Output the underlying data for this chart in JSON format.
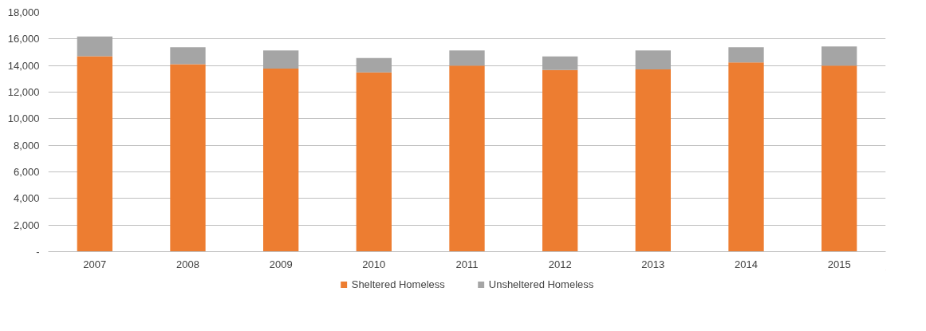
{
  "chart_data": {
    "type": "bar",
    "stacked": true,
    "categories": [
      "2007",
      "2008",
      "2009",
      "2010",
      "2011",
      "2012",
      "2013",
      "2014",
      "2015"
    ],
    "series": [
      {
        "name": "Sheltered Homeless",
        "color": "#ed7d31",
        "values": [
          14700,
          14100,
          13770,
          13490,
          14000,
          13660,
          13710,
          14230,
          14000
        ]
      },
      {
        "name": "Unsheltered Homeless",
        "color": "#a5a5a5",
        "values": [
          1490,
          1270,
          1370,
          1080,
          1140,
          1030,
          1430,
          1140,
          1430
        ]
      }
    ],
    "ylim": [
      0,
      18000
    ],
    "yticks": [
      {
        "value": 0,
        "label": "-"
      },
      {
        "value": 2000,
        "label": "2,000"
      },
      {
        "value": 4000,
        "label": "4,000"
      },
      {
        "value": 6000,
        "label": "6,000"
      },
      {
        "value": 8000,
        "label": "8,000"
      },
      {
        "value": 10000,
        "label": "10,000"
      },
      {
        "value": 12000,
        "label": "12,000"
      },
      {
        "value": 14000,
        "label": "14,000"
      },
      {
        "value": 16000,
        "label": "16,000"
      },
      {
        "value": 18000,
        "label": "18,000"
      }
    ],
    "grid": "y",
    "legend": "bottom"
  }
}
